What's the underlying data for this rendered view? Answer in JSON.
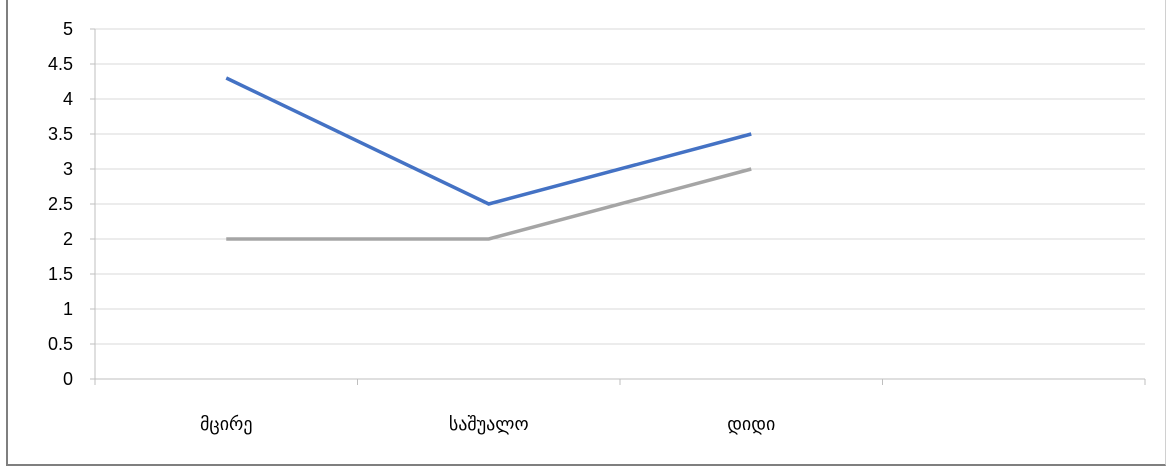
{
  "chart_data": {
    "type": "line",
    "title": "",
    "categories": [
      "მცირე",
      "საშუალო",
      "დიდი"
    ],
    "series": [
      {
        "values": [
          4.3,
          2.5,
          3.5
        ],
        "color": "#4472c4"
      },
      {
        "values": [
          2,
          2,
          3
        ],
        "color": "#a5a5a5"
      }
    ],
    "ylim": [
      0,
      5
    ],
    "yticks": [
      "0",
      "0.5",
      "1",
      "1.5",
      "2",
      "2.5",
      "3",
      "3.5",
      "4",
      "4.5",
      "5"
    ],
    "grid": true,
    "xlabel": "",
    "ylabel": ""
  }
}
